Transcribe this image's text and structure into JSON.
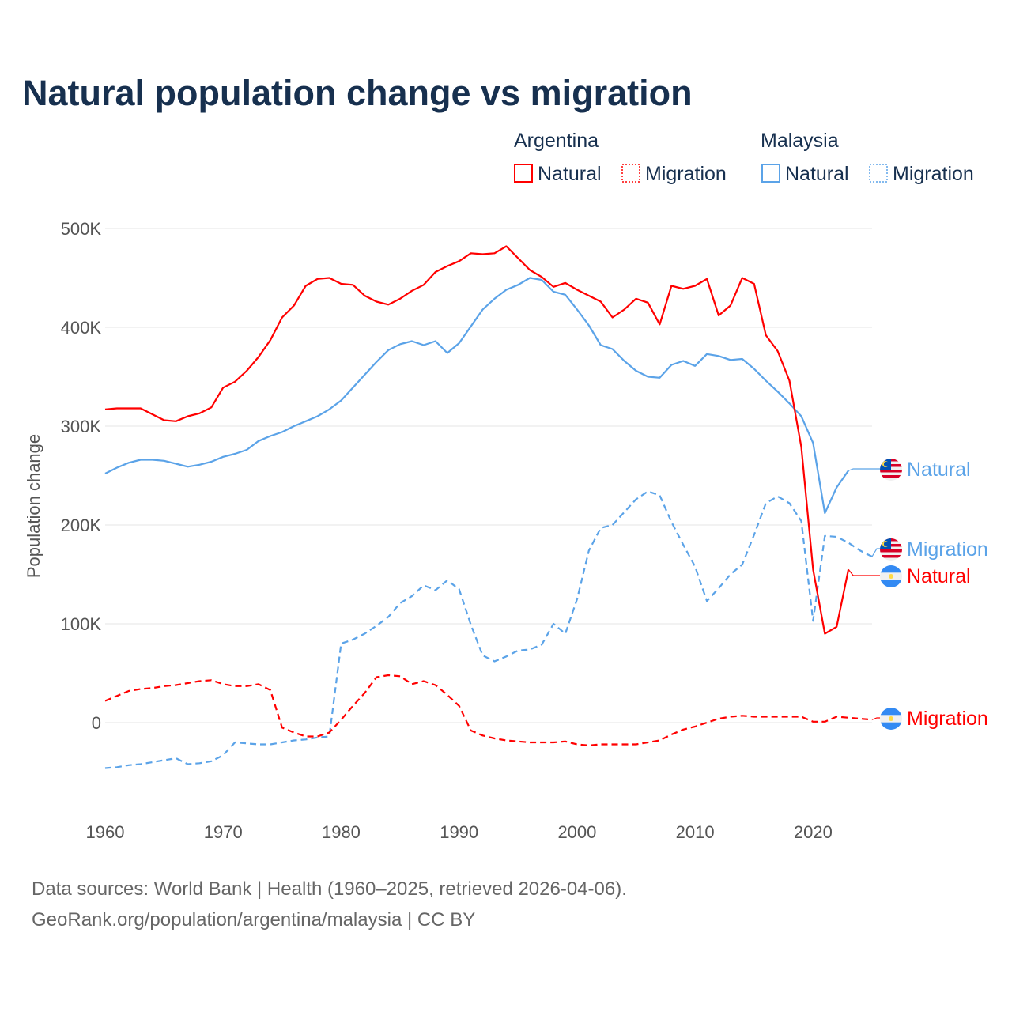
{
  "colors": {
    "argentina": "#ff0000",
    "malaysia": "#5ba3e8",
    "title": "#17304f",
    "grid": "#e6e6e6"
  },
  "chart_data": {
    "type": "line",
    "title": "Natural population change vs migration",
    "ylabel": "Population change",
    "xlabel": "",
    "xlim": [
      1960,
      2025
    ],
    "ylim": [
      -80000,
      520000
    ],
    "x_ticks": [
      1960,
      1970,
      1980,
      1990,
      2000,
      2010,
      2020
    ],
    "x_tick_labels": [
      "1960",
      "1970",
      "1980",
      "1990",
      "2000",
      "2010",
      "2020"
    ],
    "y_ticks": [
      0,
      100000,
      200000,
      300000,
      400000,
      500000
    ],
    "y_tick_labels": [
      "0",
      "100K",
      "200K",
      "300K",
      "400K",
      "500K"
    ],
    "grid": true,
    "legend_placement": "top-right",
    "legend": {
      "groups": [
        {
          "country": "Argentina",
          "items": [
            "Natural",
            "Migration"
          ]
        },
        {
          "country": "Malaysia",
          "items": [
            "Natural",
            "Migration"
          ]
        }
      ]
    },
    "series": [
      {
        "name": "Argentina Natural",
        "country": "Argentina",
        "kind": "Natural",
        "start_year": 1960,
        "end_label": "Natural",
        "flag": "argentina-flag",
        "values_k": [
          317,
          318,
          318,
          318,
          312,
          306,
          305,
          310,
          313,
          319,
          339,
          345,
          356,
          370,
          387,
          410,
          422,
          442,
          449,
          450,
          444,
          443,
          432,
          426,
          423,
          429,
          437,
          443,
          456,
          462,
          467,
          475,
          474,
          475,
          482,
          470,
          458,
          451,
          441,
          445,
          438,
          432,
          426,
          410,
          418,
          429,
          425,
          403,
          442,
          439,
          442,
          449,
          412,
          422,
          450,
          444,
          392,
          376,
          346,
          279,
          155,
          90,
          97,
          155
        ]
      },
      {
        "name": "Argentina Migration",
        "country": "Argentina",
        "kind": "Migration",
        "start_year": 1960,
        "end_label": "Migration",
        "flag": "argentina-flag",
        "values_k": [
          22,
          27,
          32,
          34,
          35,
          37,
          38,
          40,
          42,
          43,
          39,
          37,
          37,
          39,
          33,
          -5,
          -10,
          -14,
          -14,
          -10,
          3,
          17,
          30,
          46,
          48,
          47,
          39,
          42,
          38,
          28,
          17,
          -8,
          -13,
          -16,
          -18,
          -19,
          -20,
          -20,
          -20,
          -19,
          -22,
          -23,
          -22,
          -22,
          -22,
          -22,
          -20,
          -18,
          -12,
          -7,
          -4,
          0,
          4,
          6,
          7,
          6,
          6,
          6,
          6,
          6,
          1,
          1,
          6,
          5,
          4,
          3
        ]
      },
      {
        "name": "Malaysia Natural",
        "country": "Malaysia",
        "kind": "Natural",
        "start_year": 1960,
        "end_label": "Natural",
        "flag": "malaysia-flag",
        "values_k": [
          252,
          258,
          263,
          266,
          266,
          265,
          262,
          259,
          261,
          264,
          269,
          272,
          276,
          285,
          290,
          294,
          300,
          305,
          310,
          317,
          326,
          339,
          352,
          365,
          377,
          383,
          386,
          382,
          386,
          374,
          384,
          401,
          418,
          429,
          438,
          443,
          450,
          448,
          436,
          433,
          418,
          402,
          382,
          378,
          366,
          356,
          350,
          349,
          362,
          366,
          361,
          373,
          371,
          367,
          368,
          358,
          346,
          335,
          323,
          310,
          283,
          212,
          238,
          255
        ]
      },
      {
        "name": "Malaysia Migration",
        "country": "Malaysia",
        "kind": "Migration",
        "start_year": 1960,
        "end_label": "Migration",
        "flag": "malaysia-flag",
        "values_k": [
          -46,
          -45,
          -43,
          -42,
          -40,
          -38,
          -36,
          -42,
          -41,
          -39,
          -33,
          -20,
          -21,
          -22,
          -22,
          -20,
          -18,
          -17,
          -15,
          -14,
          80,
          84,
          90,
          98,
          107,
          121,
          128,
          139,
          134,
          144,
          135,
          99,
          68,
          62,
          67,
          73,
          74,
          79,
          100,
          90,
          125,
          174,
          197,
          200,
          213,
          226,
          234,
          230,
          203,
          180,
          158,
          123,
          136,
          150,
          160,
          190,
          222,
          229,
          222,
          204,
          103,
          189,
          188,
          182,
          174,
          168
        ]
      }
    ]
  },
  "footer": {
    "source_line": "Data sources: World Bank | Health (1960–2025, retrieved 2026-04-06).",
    "credit_line": "GeoRank.org/population/argentina/malaysia | CC BY"
  }
}
